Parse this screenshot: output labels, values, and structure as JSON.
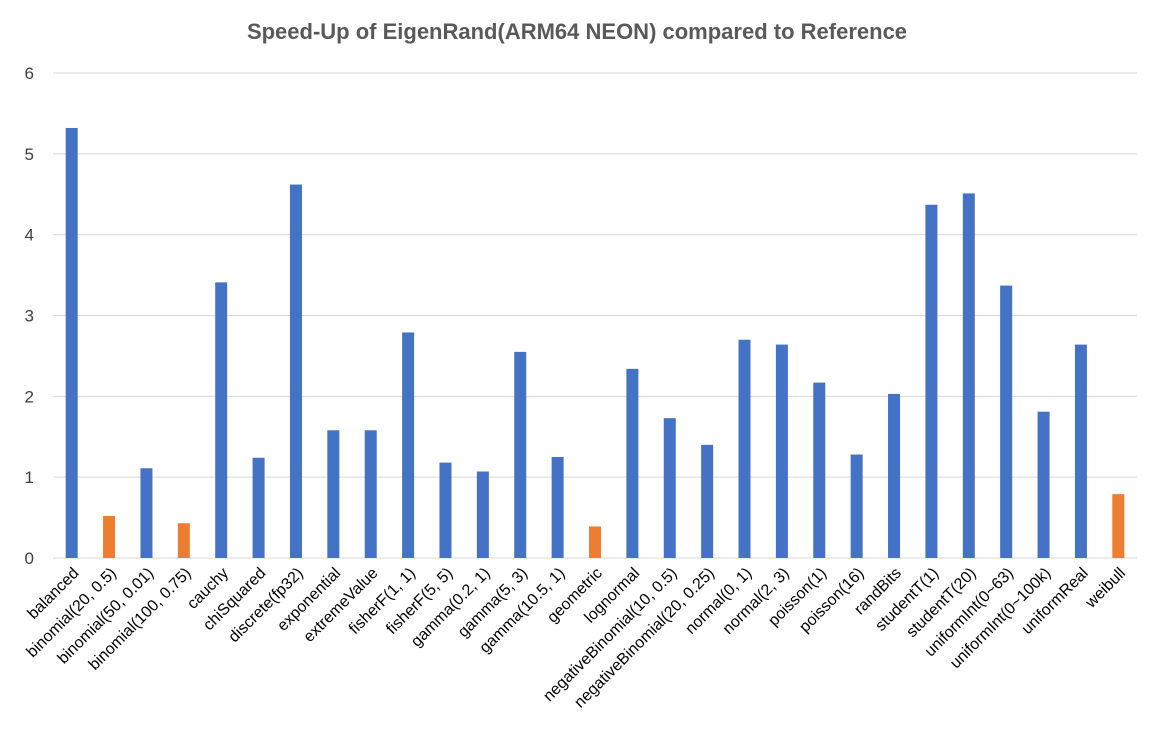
{
  "chart_data": {
    "type": "bar",
    "title": "Speed-Up of EigenRand(ARM64 NEON) compared to Reference",
    "xlabel": "",
    "ylabel": "",
    "ylim": [
      0,
      6
    ],
    "yticks": [
      0,
      1,
      2,
      3,
      4,
      5,
      6
    ],
    "grid": true,
    "legend": "none",
    "colors": {
      "above_1": "#4472C4",
      "below_1": "#ED7D31"
    },
    "categories": [
      "balanced",
      "binomial(20, 0.5)",
      "binomial(50, 0.01)",
      "binomial(100, 0.75)",
      "cauchy",
      "chiSquared",
      "discrete(fp32)",
      "exponential",
      "extremeValue",
      "fisherF(1, 1)",
      "fisherF(5, 5)",
      "gamma(0.2, 1)",
      "gamma(5, 3)",
      "gamma(10.5, 1)",
      "geometric",
      "lognormal",
      "negativeBinomial(10, 0.5)",
      "negativeBinomial(20, 0.25)",
      "normal(0, 1)",
      "normal(2, 3)",
      "poisson(1)",
      "poisson(16)",
      "randBits",
      "studentT(1)",
      "studentT(20)",
      "uniformInt(0~63)",
      "uniformInt(0~100k)",
      "uniformReal",
      "weibull"
    ],
    "values": [
      5.32,
      0.52,
      1.11,
      0.43,
      3.41,
      1.24,
      4.62,
      1.58,
      1.58,
      2.79,
      1.18,
      1.07,
      2.55,
      1.25,
      0.39,
      2.34,
      1.73,
      1.4,
      2.7,
      2.64,
      2.17,
      1.28,
      2.03,
      4.37,
      4.51,
      3.37,
      1.81,
      2.64,
      0.79
    ]
  }
}
